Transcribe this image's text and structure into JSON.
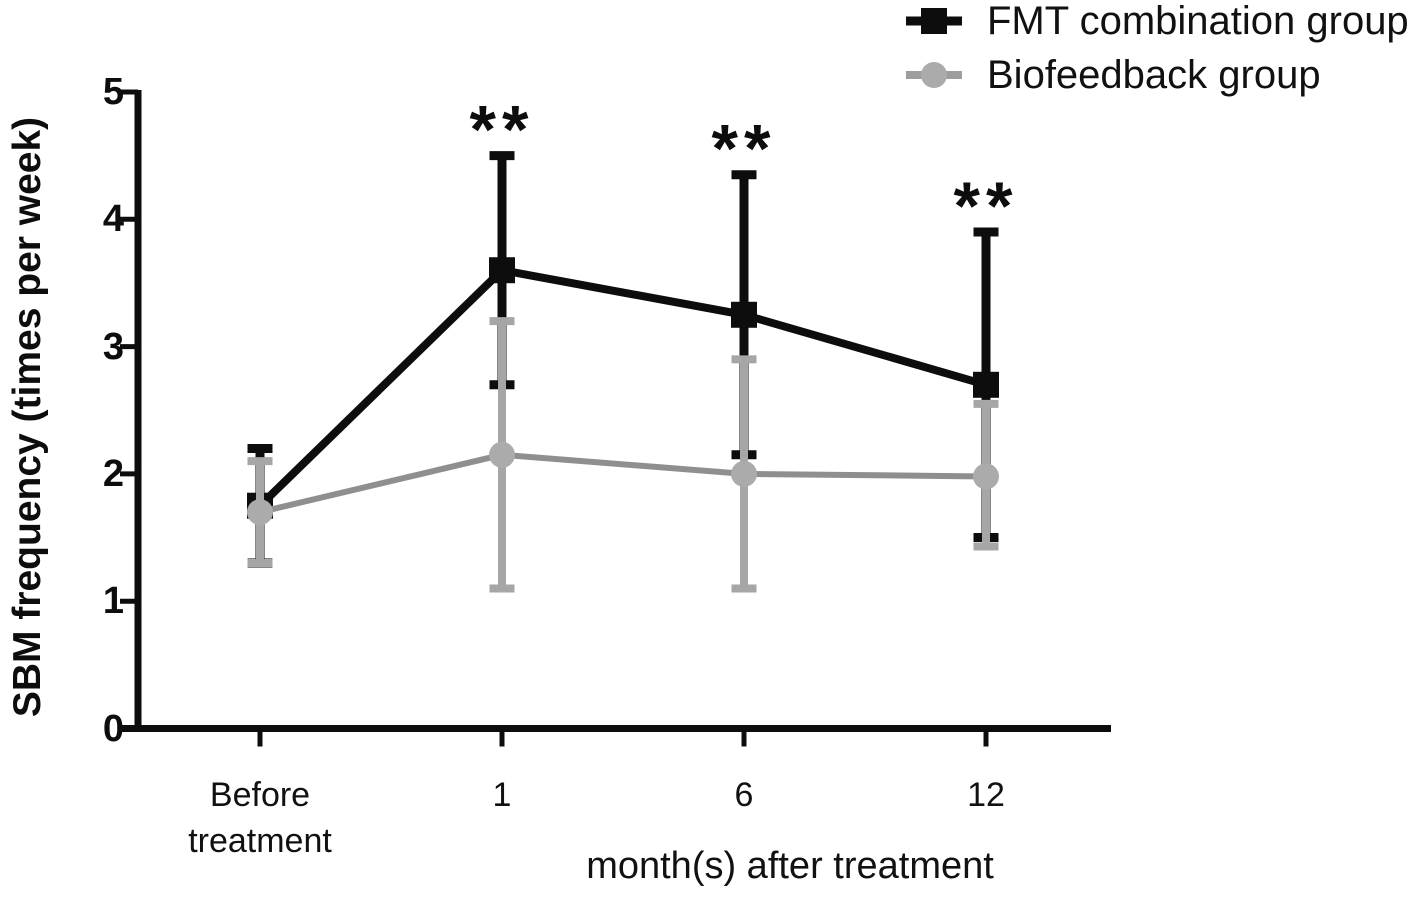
{
  "chart_data": {
    "type": "line",
    "title": "",
    "categories": [
      "Before treatment",
      "1",
      "6",
      "12"
    ],
    "xlabel": "month(s) after treatment",
    "ylabel": "SBM frequency (times per week)",
    "ylim": [
      0,
      5
    ],
    "yticks": [
      0,
      1,
      2,
      3,
      4,
      5
    ],
    "grid": false,
    "legend_position": "top-right",
    "series": [
      {
        "name": "FMT combination group",
        "marker": "square",
        "color": "#0d0d0d",
        "line_color": "#0d0d0d",
        "error_color": "#0d0d0d",
        "values": [
          1.75,
          3.6,
          3.25,
          2.7
        ],
        "error_plus": [
          0.45,
          0.9,
          1.1,
          1.2
        ],
        "error_minus": [
          0.45,
          0.9,
          1.1,
          1.2
        ]
      },
      {
        "name": "Biofeedback group",
        "marker": "circle",
        "color": "#ababab",
        "line_color": "#8f8f8f",
        "error_color": "#a6a6a6",
        "values": [
          1.7,
          2.15,
          2.0,
          1.98
        ],
        "error_plus": [
          0.4,
          1.05,
          0.9,
          0.57
        ],
        "error_minus": [
          0.4,
          1.05,
          0.9,
          0.55
        ]
      }
    ],
    "annotations": [
      {
        "text": "**",
        "category_index": 1,
        "series_index": 0
      },
      {
        "text": "**",
        "category_index": 2,
        "series_index": 0
      },
      {
        "text": "**",
        "category_index": 3,
        "series_index": 0
      }
    ]
  }
}
